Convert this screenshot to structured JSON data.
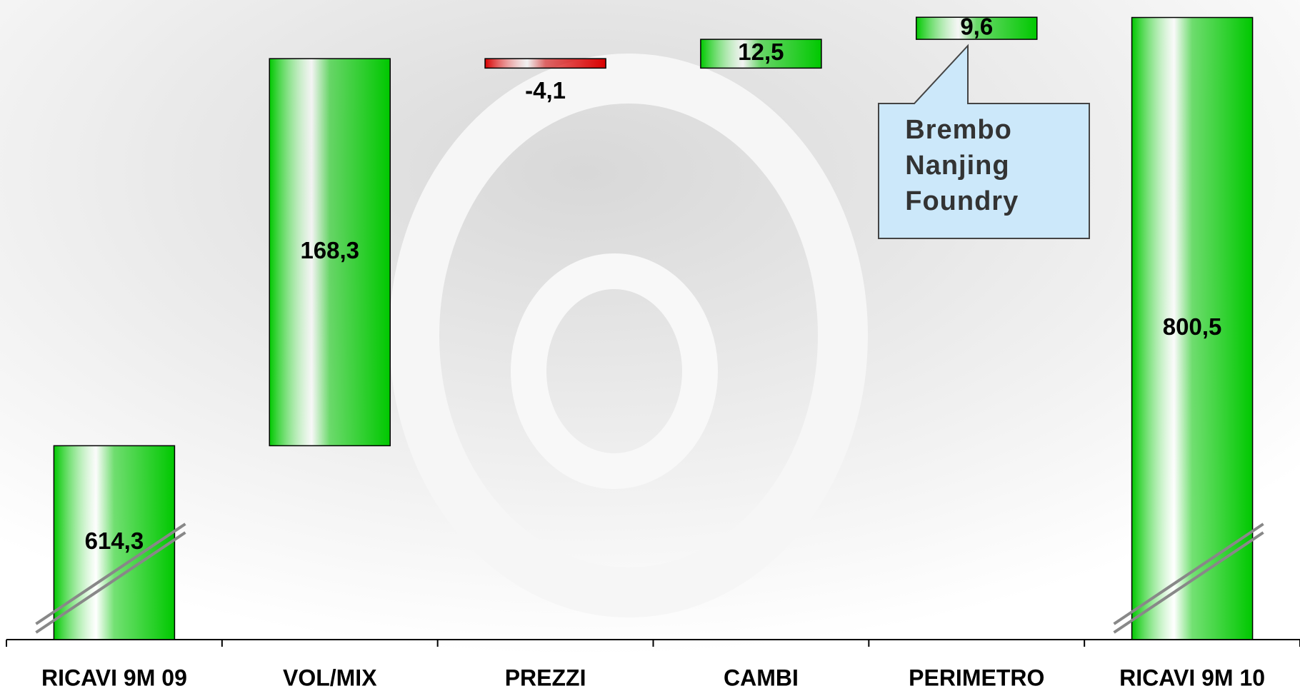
{
  "chart_data": {
    "type": "waterfall",
    "categories": [
      "RICAVI 9M 09",
      "VOL/MIX",
      "PREZZI",
      "CAMBI",
      "PERIMETRO",
      "RICAVI 9M 10"
    ],
    "values": [
      614.3,
      168.3,
      -4.1,
      12.5,
      9.6,
      800.5
    ],
    "value_labels": [
      "614,3",
      "168,3",
      "-4,1",
      "12,5",
      "9,6",
      "800,5"
    ],
    "color": "#00c800",
    "negative_color": "#d80000",
    "ylim": [
      530,
      805
    ],
    "axis_break": true,
    "annotation": [
      "Brembo",
      "Nanjing",
      "Foundry"
    ]
  }
}
